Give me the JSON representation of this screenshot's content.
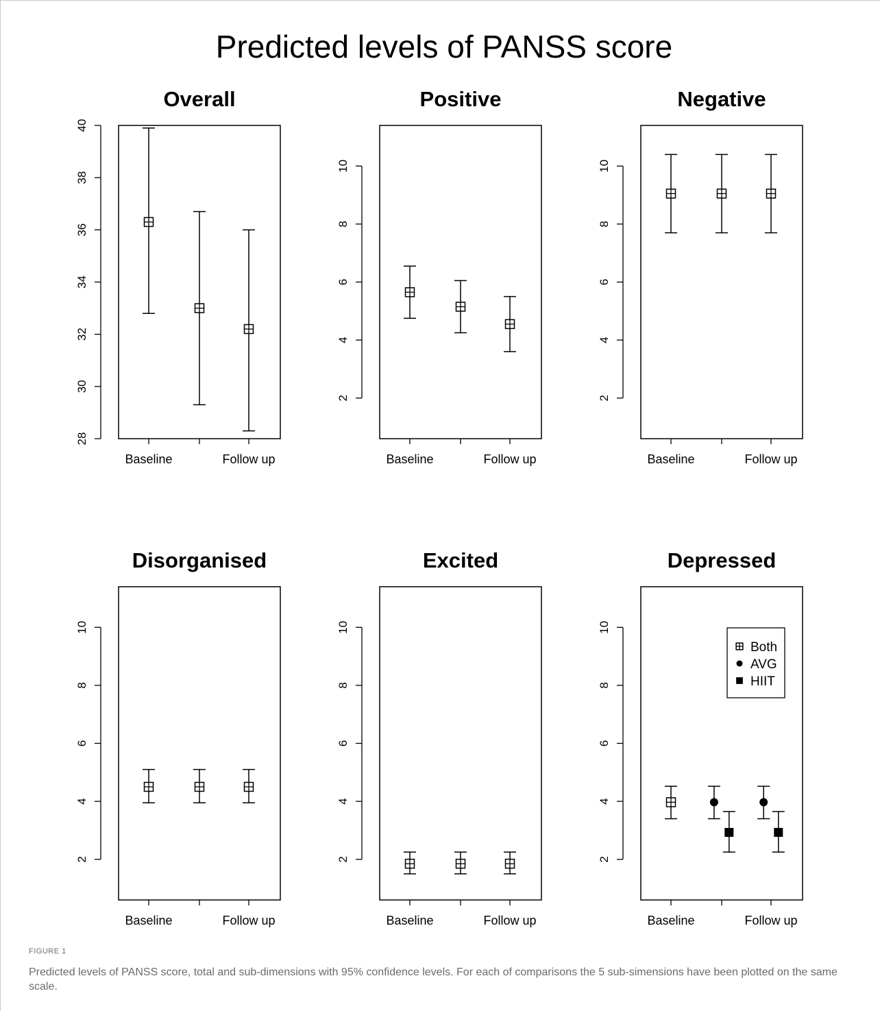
{
  "figure": {
    "label": "FIGURE 1",
    "caption": "Predicted levels of PANSS score, total and sub-dimensions with 95% confidence levels. For each of comparisons the 5 sub-simensions have been plotted on the same scale."
  },
  "colors": {
    "ink": "#000000",
    "background": "#ffffff",
    "caption": "#6b6b6b"
  },
  "chart_data": [
    {
      "type": "scatter",
      "title": "Overall",
      "suptitle": "Predicted levels of PANSS score",
      "xtick_labels": [
        "Baseline",
        "",
        "Follow up"
      ],
      "ylim": [
        28,
        40
      ],
      "yticks": [
        28,
        30,
        32,
        34,
        36,
        38,
        40
      ],
      "series": [
        {
          "name": "Both",
          "marker": "boxplus",
          "points": [
            {
              "x": 1,
              "y": 36.3,
              "lower": 32.8,
              "upper": 39.9
            },
            {
              "x": 2,
              "y": 33.0,
              "lower": 29.3,
              "upper": 36.7
            },
            {
              "x": 3,
              "y": 32.2,
              "lower": 28.3,
              "upper": 36.0
            }
          ]
        }
      ]
    },
    {
      "type": "scatter",
      "title": "Positive",
      "xtick_labels": [
        "Baseline",
        "",
        "Follow up"
      ],
      "ylim": [
        0.6,
        11.4
      ],
      "yticks": [
        2,
        4,
        6,
        8,
        10
      ],
      "series": [
        {
          "name": "Both",
          "marker": "boxplus",
          "points": [
            {
              "x": 1,
              "y": 5.65,
              "lower": 4.75,
              "upper": 6.55
            },
            {
              "x": 2,
              "y": 5.15,
              "lower": 4.25,
              "upper": 6.05
            },
            {
              "x": 3,
              "y": 4.55,
              "lower": 3.6,
              "upper": 5.5
            }
          ]
        }
      ]
    },
    {
      "type": "scatter",
      "title": "Negative",
      "xtick_labels": [
        "Baseline",
        "",
        "Follow up"
      ],
      "ylim": [
        0.6,
        11.4
      ],
      "yticks": [
        2,
        4,
        6,
        8,
        10
      ],
      "series": [
        {
          "name": "Both",
          "marker": "boxplus",
          "points": [
            {
              "x": 1,
              "y": 9.05,
              "lower": 7.7,
              "upper": 10.4
            },
            {
              "x": 2,
              "y": 9.05,
              "lower": 7.7,
              "upper": 10.4
            },
            {
              "x": 3,
              "y": 9.05,
              "lower": 7.7,
              "upper": 10.4
            }
          ]
        }
      ]
    },
    {
      "type": "scatter",
      "title": "Disorganised",
      "xtick_labels": [
        "Baseline",
        "",
        "Follow up"
      ],
      "ylim": [
        0.6,
        11.4
      ],
      "yticks": [
        2,
        4,
        6,
        8,
        10
      ],
      "series": [
        {
          "name": "Both",
          "marker": "boxplus",
          "points": [
            {
              "x": 1,
              "y": 4.5,
              "lower": 3.95,
              "upper": 5.1
            },
            {
              "x": 2,
              "y": 4.5,
              "lower": 3.95,
              "upper": 5.1
            },
            {
              "x": 3,
              "y": 4.5,
              "lower": 3.95,
              "upper": 5.1
            }
          ]
        }
      ]
    },
    {
      "type": "scatter",
      "title": "Excited",
      "xtick_labels": [
        "Baseline",
        "",
        "Follow up"
      ],
      "ylim": [
        0.6,
        11.4
      ],
      "yticks": [
        2,
        4,
        6,
        8,
        10
      ],
      "series": [
        {
          "name": "Both",
          "marker": "boxplus",
          "points": [
            {
              "x": 1,
              "y": 1.85,
              "lower": 1.5,
              "upper": 2.25
            },
            {
              "x": 2,
              "y": 1.85,
              "lower": 1.5,
              "upper": 2.25
            },
            {
              "x": 3,
              "y": 1.85,
              "lower": 1.5,
              "upper": 2.25
            }
          ]
        }
      ]
    },
    {
      "type": "scatter",
      "title": "Depressed",
      "xtick_labels": [
        "Baseline",
        "",
        "Follow up"
      ],
      "ylim": [
        0.6,
        11.4
      ],
      "yticks": [
        2,
        4,
        6,
        8,
        10
      ],
      "legend": {
        "placement": "top-right",
        "entries": [
          "Both",
          "AVG",
          "HIIT"
        ]
      },
      "series": [
        {
          "name": "Both",
          "marker": "boxplus",
          "points": [
            {
              "x": 1,
              "y": 3.97,
              "lower": 3.4,
              "upper": 4.52
            }
          ]
        },
        {
          "name": "AVG",
          "marker": "circle",
          "points": [
            {
              "x": 1.85,
              "y": 3.97,
              "lower": 3.4,
              "upper": 4.52
            },
            {
              "x": 2.85,
              "y": 3.97,
              "lower": 3.4,
              "upper": 4.52
            }
          ]
        },
        {
          "name": "HIIT",
          "marker": "square",
          "points": [
            {
              "x": 2.15,
              "y": 2.93,
              "lower": 2.25,
              "upper": 3.65
            },
            {
              "x": 3.15,
              "y": 2.93,
              "lower": 2.25,
              "upper": 3.65
            }
          ]
        }
      ]
    }
  ]
}
